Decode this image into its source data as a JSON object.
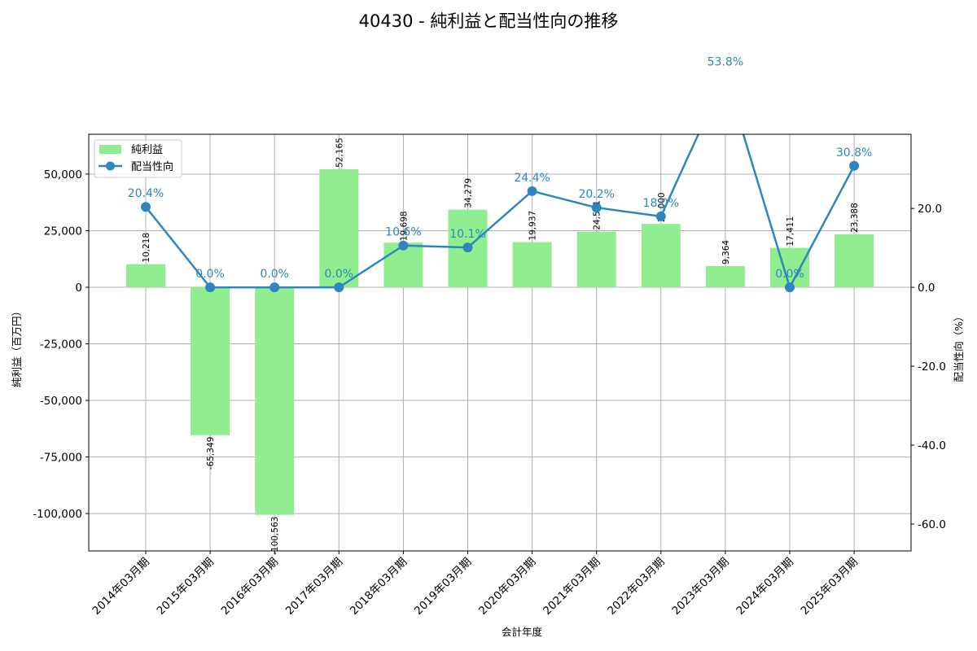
{
  "chart_data": {
    "type": "bar+line",
    "title": "40430 - 純利益と配当性向の推移",
    "xlabel": "会計年度",
    "ylabel_left": "純利益（百万円）",
    "ylabel_right": "配当性向（%）",
    "categories": [
      "2014年03月期",
      "2015年03月期",
      "2016年03月期",
      "2017年03月期",
      "2018年03月期",
      "2019年03月期",
      "2020年03月期",
      "2021年03月期",
      "2022年03月期",
      "2023年03月期",
      "2024年03月期",
      "2025年03月期"
    ],
    "series": [
      {
        "name": "純利益",
        "type": "bar",
        "axis": "left",
        "color": "#90ee90",
        "values": [
          10218,
          -65349,
          -100563,
          52165,
          19698,
          34279,
          19937,
          24541,
          28000,
          9364,
          17411,
          23388
        ],
        "labels": [
          "10,218",
          "-65,349",
          "-100,563",
          "52,165",
          "19,698",
          "34,279",
          "19,937",
          "24,541",
          "28,000",
          "9,364",
          "17,411",
          "23,388"
        ]
      },
      {
        "name": "配当性向",
        "type": "line",
        "axis": "right",
        "color": "#2e86c1",
        "values": [
          20.4,
          0.0,
          0.0,
          0.0,
          10.6,
          10.1,
          24.4,
          20.2,
          18.0,
          53.8,
          0.0,
          30.8
        ],
        "labels": [
          "20.4%",
          "0.0%",
          "0.0%",
          "0.0%",
          "10.6%",
          "10.1%",
          "24.4%",
          "20.2%",
          "18.0%",
          "53.8%",
          "0.0%",
          "30.8%"
        ]
      }
    ],
    "ylim_left": [
      -116500,
      67600
    ],
    "ylim_right": [
      -66.8,
      38.8
    ],
    "yticks_left": [
      50000,
      25000,
      0,
      -25000,
      -50000,
      -75000,
      -100000
    ],
    "yticks_left_labels": [
      "50,000",
      "25,000",
      "0",
      "-25,000",
      "-50,000",
      "-75,000",
      "-100,000"
    ],
    "yticks_right": [
      20,
      0,
      -20,
      -40,
      -60
    ],
    "yticks_right_labels": [
      "20.0",
      "0.0",
      "-20.0",
      "-40.0",
      "-60.0"
    ],
    "grid": true,
    "legend_position": "upper left"
  },
  "legend": {
    "bar_label": "純利益",
    "line_label": "配当性向"
  }
}
